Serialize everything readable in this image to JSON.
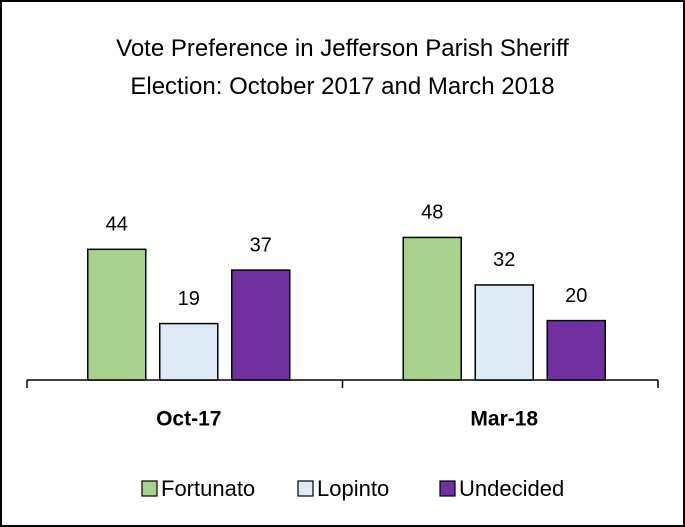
{
  "chart_data": {
    "type": "bar",
    "title": "Vote Preference in Jefferson Parish Sheriff Election: October 2017 and March 2018",
    "categories": [
      "Oct-17",
      "Mar-18"
    ],
    "series": [
      {
        "name": "Fortunato",
        "color": "#a9d18e",
        "values": [
          44,
          48
        ]
      },
      {
        "name": "Lopinto",
        "color": "#deebf7",
        "values": [
          19,
          32
        ]
      },
      {
        "name": "Undecided",
        "color": "#7030a0",
        "values": [
          37,
          20
        ]
      }
    ],
    "legend": "bottom"
  }
}
